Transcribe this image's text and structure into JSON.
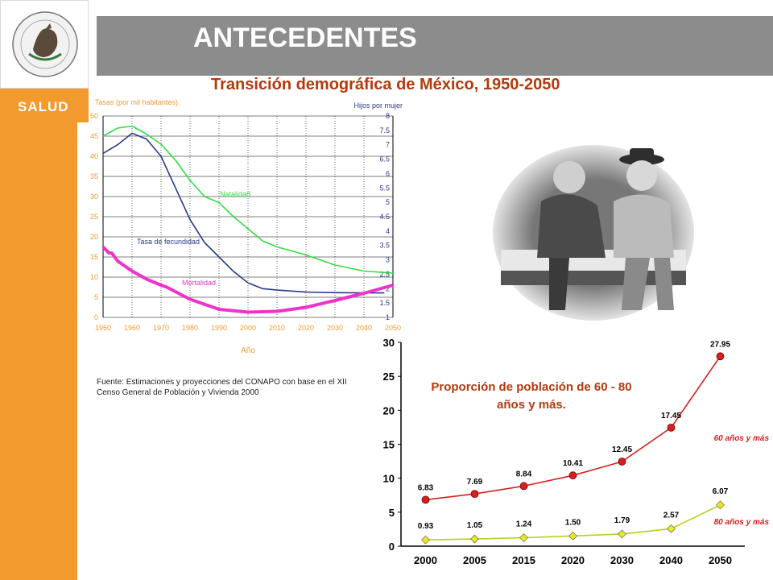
{
  "header": {
    "title": "ANTECEDENTES"
  },
  "sidebar": {
    "label": "SALUD",
    "logo_text": "ESTADOS UNIDOS MEXICANOS"
  },
  "main_title": "Transición demográfica de México, 1950-2050",
  "source_text": "Fuente: Estimaciones y proyecciones del CONAPO con base en el XII Censo General de Población y Vivienda 2000",
  "colors": {
    "sidebar": "#f39a2e",
    "header": "#8c8c8c",
    "title": "#b33a0c",
    "natalidad": "#33dd44",
    "fecundidad": "#2a3a8c",
    "mortalidad": "#ee33cc",
    "series60": "#d62020",
    "series80": "#b8d020"
  },
  "chart_data": [
    {
      "type": "line",
      "ylabel": "Tasas (por mil habitantes)",
      "y2label": "Hijos por mujer",
      "xlabel": "Año",
      "x_ticks": [
        "1950",
        "1960",
        "1970",
        "1980",
        "1990",
        "2000",
        "2010",
        "2020",
        "2030",
        "2040",
        "2050"
      ],
      "y_ticks": [
        "0",
        "5",
        "10",
        "15",
        "20",
        "25",
        "30",
        "35",
        "40",
        "45",
        "50"
      ],
      "y2_ticks": [
        "1",
        "1.5",
        "2",
        "2.5",
        "3",
        "3.5",
        "4",
        "4.5",
        "5",
        "5.5",
        "6",
        "6.5",
        "7",
        "7.5",
        "8"
      ],
      "ylim": [
        0,
        50
      ],
      "xlim": [
        1950,
        2050
      ],
      "grid": true,
      "series": [
        {
          "name": "Natalidad",
          "x": [
            1950,
            1955,
            1960,
            1965,
            1970,
            1975,
            1980,
            1985,
            1990,
            1995,
            2000,
            2005,
            2010,
            2020,
            2030,
            2040,
            2050
          ],
          "values": [
            45,
            47,
            47.5,
            45.5,
            43,
            39,
            34,
            30,
            28.5,
            25,
            22,
            19,
            17.5,
            15.5,
            13,
            11.5,
            11
          ]
        },
        {
          "name": "Tasa de fecundidad",
          "axis": "right",
          "x": [
            1950,
            1955,
            1960,
            1965,
            1970,
            1975,
            1980,
            1985,
            1990,
            1995,
            2000,
            2005,
            2010,
            2020,
            2030,
            2040,
            2047
          ],
          "values": [
            6.7,
            7.0,
            7.4,
            7.2,
            6.6,
            5.5,
            4.4,
            3.6,
            3.1,
            2.6,
            2.2,
            2.0,
            1.95,
            1.88,
            1.86,
            1.85,
            1.85
          ]
        },
        {
          "name": "Mortalidad",
          "x": [
            1950,
            1952,
            1953,
            1955,
            1960,
            1965,
            1970,
            1972,
            1980,
            1990,
            2000,
            2010,
            2020,
            2030,
            2040,
            2050
          ],
          "values": [
            17.5,
            16,
            16,
            14,
            11.5,
            9.5,
            8,
            7.5,
            4.5,
            2,
            1.3,
            1.5,
            2.5,
            4.2,
            6,
            8
          ]
        }
      ]
    },
    {
      "type": "line",
      "title": "Proporción de población de 60 - 80 años y más.",
      "categories": [
        "2000",
        "2005",
        "2015",
        "2020",
        "2030",
        "2040",
        "2050"
      ],
      "y_ticks": [
        "0",
        "5",
        "10",
        "15",
        "20",
        "25",
        "30"
      ],
      "ylim": [
        0,
        30
      ],
      "series": [
        {
          "name": "60 años y más",
          "values": [
            6.83,
            7.69,
            8.84,
            10.41,
            12.45,
            17.45,
            27.95
          ],
          "labels": [
            "6.83",
            "7.69",
            "8.84",
            "10.41",
            "12.45",
            "17.45",
            "27.95"
          ]
        },
        {
          "name": "80 años y más",
          "values": [
            0.93,
            1.05,
            1.24,
            1.5,
            1.79,
            2.57,
            6.07
          ],
          "labels": [
            "0.93",
            "1.05",
            "1.24",
            "1.50",
            "1.79",
            "2.57",
            "6.07"
          ]
        }
      ]
    }
  ]
}
